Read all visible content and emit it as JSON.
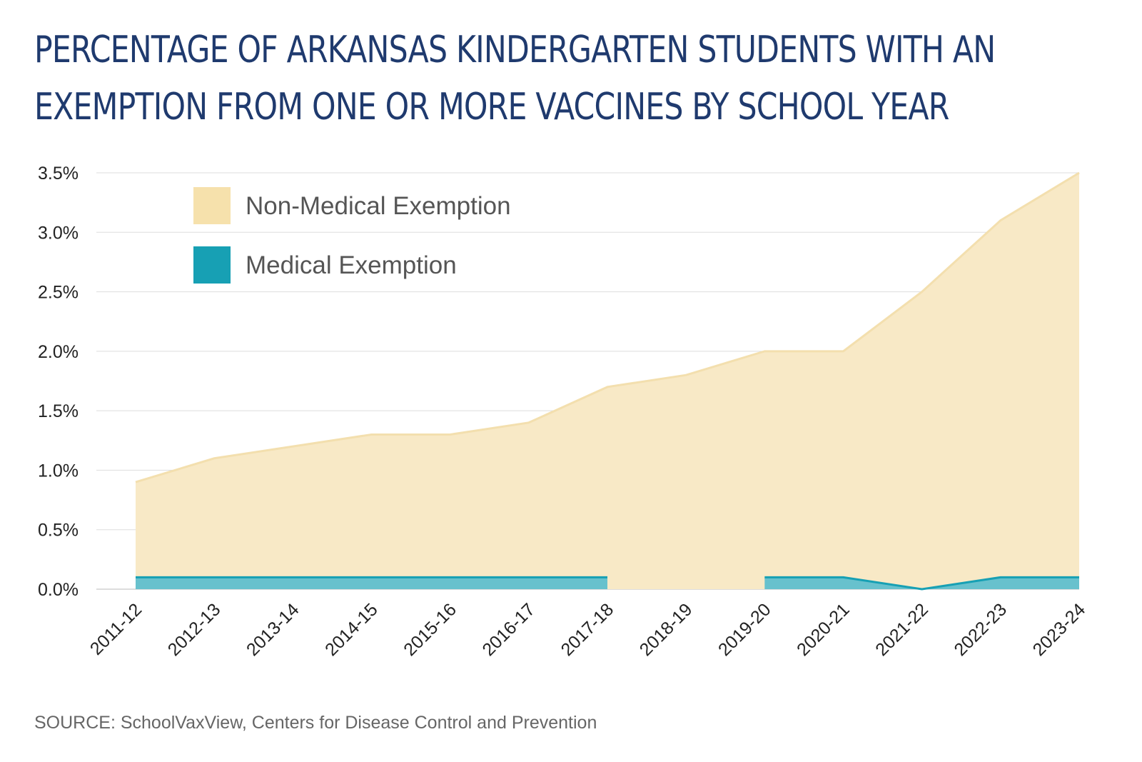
{
  "chart_data": {
    "type": "area",
    "title_lines": [
      "PERCENTAGE OF ARKANSAS KINDERGARTEN STUDENTS WITH AN",
      "EXEMPTION FROM ONE OR MORE VACCINES BY SCHOOL YEAR"
    ],
    "categories": [
      "2011-12",
      "2012-13",
      "2013-14",
      "2014-15",
      "2015-16",
      "2016-17",
      "2017-18",
      "2018-19",
      "2019-20",
      "2020-21",
      "2021-22",
      "2022-23",
      "2023-24"
    ],
    "series": [
      {
        "name": "Non-Medical Exemption",
        "color": "#f8e9c6",
        "line": "#f3dfae",
        "values": [
          0.9,
          1.1,
          1.2,
          1.3,
          1.3,
          1.4,
          1.7,
          1.8,
          2.0,
          2.0,
          2.5,
          3.1,
          3.5
        ]
      },
      {
        "name": "Medical Exemption",
        "color": "#68c1cd",
        "line": "#17a0b4",
        "values": [
          0.1,
          0.1,
          0.1,
          0.1,
          0.1,
          0.1,
          0.1,
          null,
          0.1,
          0.1,
          0.0,
          0.1,
          0.1
        ]
      }
    ],
    "ylim": [
      0,
      3.5
    ],
    "yticks": [
      "0.0%",
      "0.5%",
      "1.0%",
      "1.5%",
      "2.0%",
      "2.5%",
      "3.0%",
      "3.5%"
    ],
    "ytick_values": [
      0,
      0.5,
      1,
      1.5,
      2,
      2.5,
      3,
      3.5
    ],
    "legend": "top-left",
    "grid": true,
    "legend_swatch_colors": [
      "#f6e1ac",
      "#17a0b4"
    ]
  },
  "source": "SOURCE: SchoolVaxView, Centers for Disease Control and Prevention"
}
